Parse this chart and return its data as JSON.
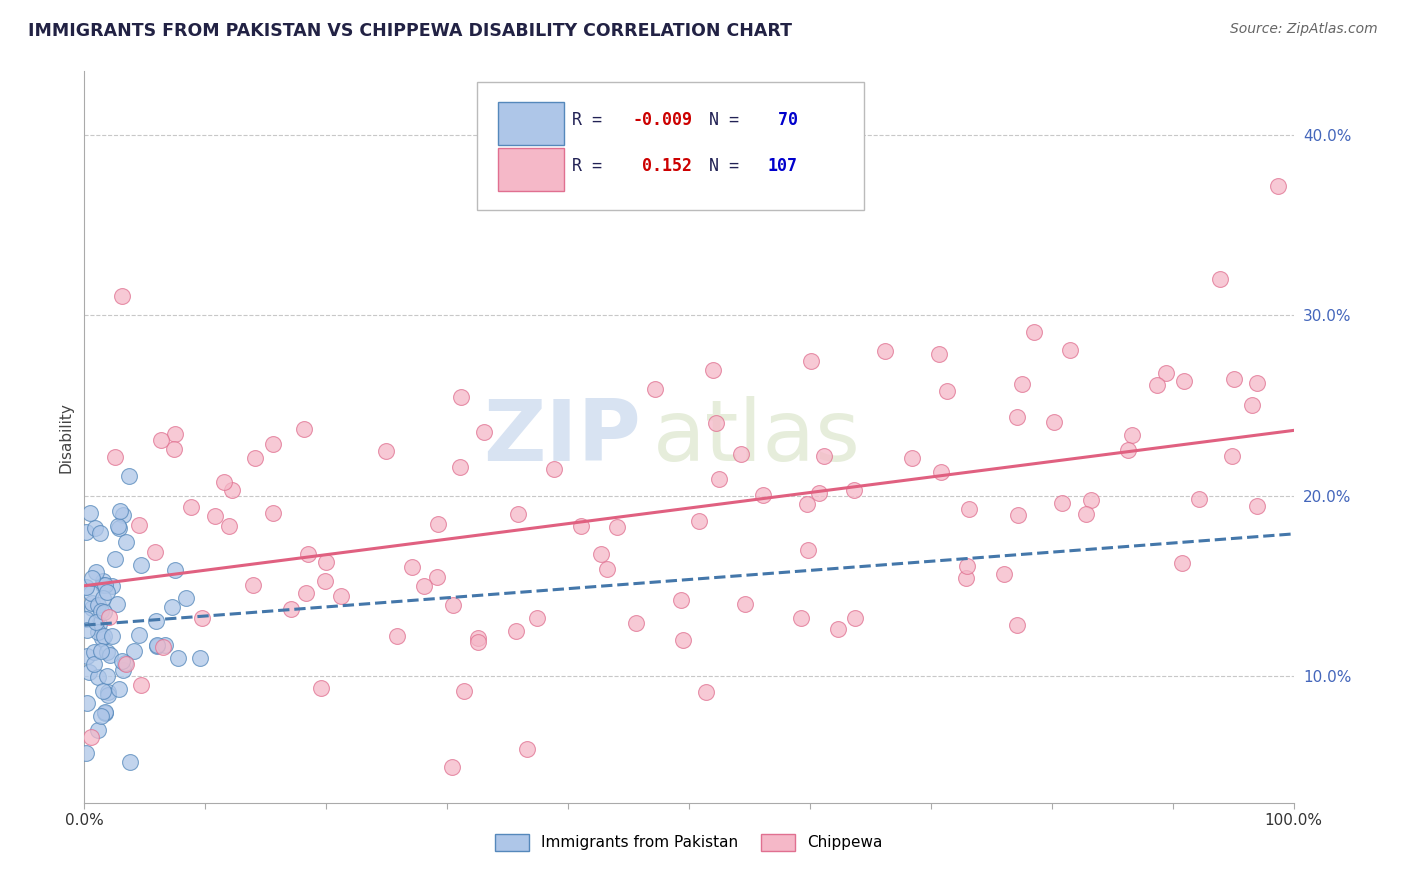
{
  "title": "IMMIGRANTS FROM PAKISTAN VS CHIPPEWA DISABILITY CORRELATION CHART",
  "source": "Source: ZipAtlas.com",
  "ylabel": "Disability",
  "xlim": [
    0.0,
    1.0
  ],
  "ylim": [
    0.03,
    0.435
  ],
  "xticks": [
    0.0,
    0.1,
    0.2,
    0.3,
    0.4,
    0.5,
    0.6,
    0.7,
    0.8,
    0.9,
    1.0
  ],
  "xticklabels": [
    "0.0%",
    "",
    "",
    "",
    "",
    "",
    "",
    "",
    "",
    "",
    "100.0%"
  ],
  "yticks": [
    0.1,
    0.2,
    0.3,
    0.4
  ],
  "yticklabels": [
    "10.0%",
    "20.0%",
    "30.0%",
    "40.0%"
  ],
  "series1_label": "Immigrants from Pakistan",
  "series1_R": -0.009,
  "series1_N": 70,
  "series1_color": "#aec6e8",
  "series1_edge_color": "#5588bb",
  "series1_line_color": "#4477aa",
  "series2_label": "Chippewa",
  "series2_R": 0.152,
  "series2_N": 107,
  "series2_color": "#f5b8c8",
  "series2_edge_color": "#e07090",
  "series2_line_color": "#e06080",
  "watermark_zip": "ZIP",
  "watermark_atlas": "atlas",
  "background_color": "#ffffff",
  "grid_color": "#c8c8c8",
  "title_color": "#222244",
  "source_color": "#666666",
  "ytick_color": "#4466bb",
  "legend_text_color": "#222255",
  "legend_R_color": "#cc0000",
  "legend_N_color": "#0000cc"
}
